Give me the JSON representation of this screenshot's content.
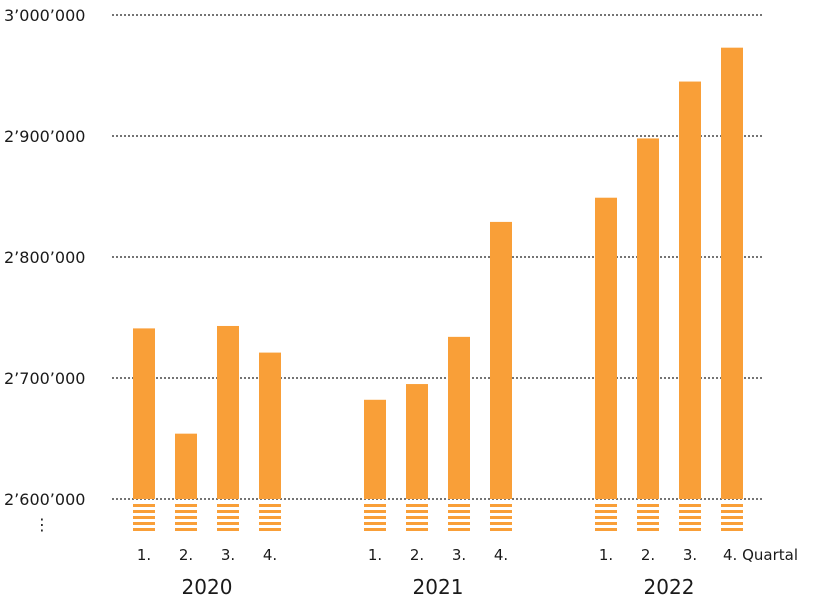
{
  "chart_data": {
    "type": "bar",
    "title": "",
    "xlabel": "",
    "ylabel": "",
    "ylim": [
      2600000,
      3000000
    ],
    "axis_break": true,
    "axis_break_symbol": "⋮",
    "yticks": [
      {
        "value": 2600000,
        "label": "2’600’000"
      },
      {
        "value": 2700000,
        "label": "2’700’000"
      },
      {
        "value": 2800000,
        "label": "2’800’000"
      },
      {
        "value": 2900000,
        "label": "2’900’000"
      },
      {
        "value": 3000000,
        "label": "3’000’000"
      }
    ],
    "grid": "horizontal dotted",
    "bar_color": "#f99f38",
    "groups": [
      {
        "year": "2020",
        "quarters": [
          {
            "label": "1.",
            "value": 2741000
          },
          {
            "label": "2.",
            "value": 2654000
          },
          {
            "label": "3.",
            "value": 2743000
          },
          {
            "label": "4.",
            "value": 2721000
          }
        ]
      },
      {
        "year": "2021",
        "quarters": [
          {
            "label": "1.",
            "value": 2682000
          },
          {
            "label": "2.",
            "value": 2695000
          },
          {
            "label": "3.",
            "value": 2734000
          },
          {
            "label": "4.",
            "value": 2829000
          }
        ]
      },
      {
        "year": "2022",
        "quarters": [
          {
            "label": "1.",
            "value": 2849000
          },
          {
            "label": "2.",
            "value": 2898000
          },
          {
            "label": "3.",
            "value": 2945000
          },
          {
            "label": "4. Quartal",
            "value": 2973000
          }
        ]
      }
    ]
  }
}
